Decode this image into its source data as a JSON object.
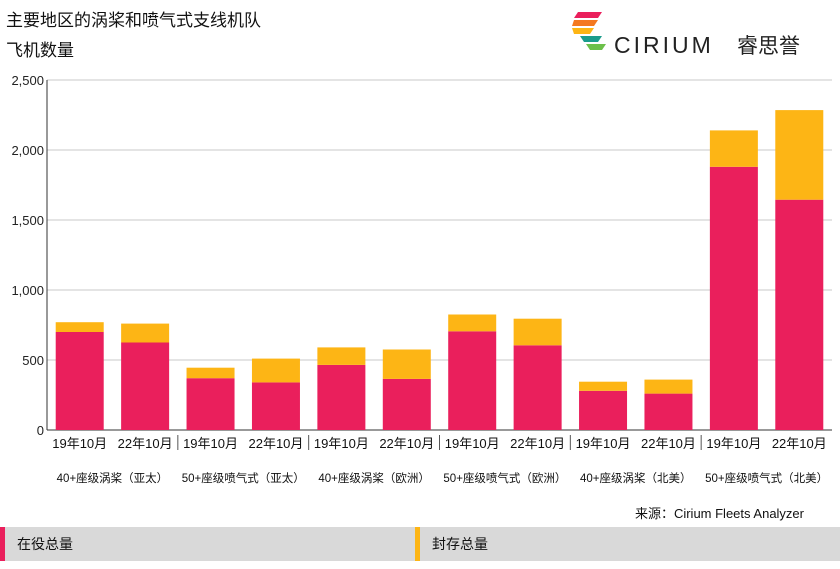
{
  "title_line1": "主要地区的涡桨和喷气式支线机队",
  "title_line2": "飞机数量",
  "logo": {
    "name": "CIRIUM",
    "cn": "睿思誉"
  },
  "source": "来源：Cirium Fleets Analyzer",
  "legend": {
    "active": "在役总量",
    "stored": "封存总量"
  },
  "colors": {
    "active": "#ea1f5c",
    "stored": "#fdb515",
    "gridline": "#c8c8c8",
    "axis": "#333333"
  },
  "chart_data": {
    "type": "bar",
    "stacked": true,
    "ylim": [
      0,
      2500
    ],
    "yticks": [
      0,
      500,
      1000,
      1500,
      2000,
      2500
    ],
    "ytick_labels": [
      "0",
      "500",
      "1,000",
      "1,500",
      "2,000",
      "2,500"
    ],
    "grid": true,
    "groups": [
      "40+座级涡桨（亚太）",
      "50+座级喷气式（亚太）",
      "40+座级涡桨（欧洲）",
      "50+座级喷气式（欧洲）",
      "40+座级涡桨（北美）",
      "50+座级喷气式（北美）"
    ],
    "categories": [
      "19年10月",
      "22年10月",
      "19年10月",
      "22年10月",
      "19年10月",
      "22年10月",
      "19年10月",
      "22年10月",
      "19年10月",
      "22年10月",
      "19年10月",
      "22年10月"
    ],
    "series": [
      {
        "name": "在役总量",
        "values": [
          700,
          625,
          370,
          340,
          465,
          365,
          705,
          605,
          280,
          260,
          1880,
          1645
        ]
      },
      {
        "name": "封存总量",
        "values": [
          70,
          135,
          75,
          170,
          125,
          210,
          120,
          190,
          65,
          100,
          260,
          640
        ]
      }
    ]
  }
}
